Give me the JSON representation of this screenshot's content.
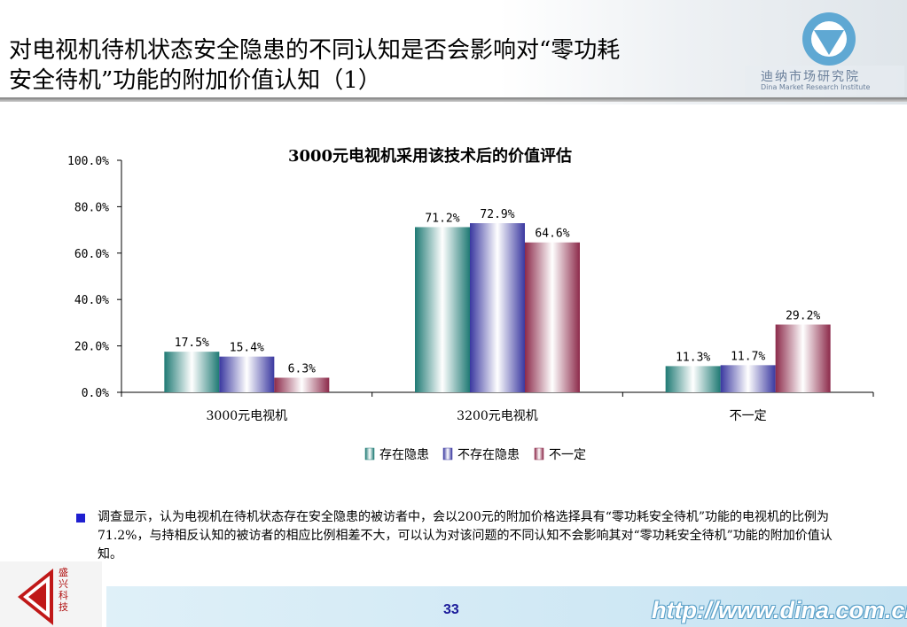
{
  "slide": {
    "title": "对电视机待机状态安全隐患的不同认知是否会影响对“零功耗\n安全待机”功能的附加价值认知（1）",
    "logo_cn": "迪纳市场研究院",
    "logo_en": "Dina Market Research Institute",
    "corner_logo_text": "盛兴科技",
    "summary": "调查显示，认为电视机在待机状态存在安全隐患的被访者中，会以200元的附加价格选择具有“零功耗安全待机”功能的电视机的比例为71.2%，与持相反认知的被访者的相应比例相差不大，可以认为对该问题的不同认知不会影响其对“零功耗安全待机”功能的附加价值认知。",
    "page_number": "33",
    "footer_url": "http://www.dina.com.cn"
  },
  "colors": {
    "series": [
      "#1f7a74",
      "#3a38a0",
      "#8c2a4a"
    ],
    "bullet": "#1f1fd0",
    "title_rule": "#8a8a8a"
  },
  "chart_data": {
    "type": "bar",
    "title": "3000元电视机采用该技术后的价值评估",
    "xlabel": "",
    "ylabel": "",
    "categories": [
      "3000元电视机",
      "3200元电视机",
      "不一定"
    ],
    "series": [
      {
        "name": "存在隐患",
        "values": [
          17.5,
          71.2,
          11.3
        ],
        "labels": [
          "17.5%",
          "71.2%",
          "11.3%"
        ]
      },
      {
        "name": "不存在隐患",
        "values": [
          15.4,
          72.9,
          11.7
        ],
        "labels": [
          "15.4%",
          "72.9%",
          "11.7%"
        ]
      },
      {
        "name": "不一定",
        "values": [
          6.3,
          64.6,
          29.2
        ],
        "labels": [
          "6.3%",
          "64.6%",
          "29.2%"
        ]
      }
    ],
    "ylim": [
      0,
      100
    ],
    "yticks": [
      0,
      20,
      40,
      60,
      80,
      100
    ],
    "ytick_labels": [
      "0.0%",
      "20.0%",
      "40.0%",
      "60.0%",
      "80.0%",
      "100.0%"
    ],
    "grid": false,
    "legend_position": "bottom"
  }
}
